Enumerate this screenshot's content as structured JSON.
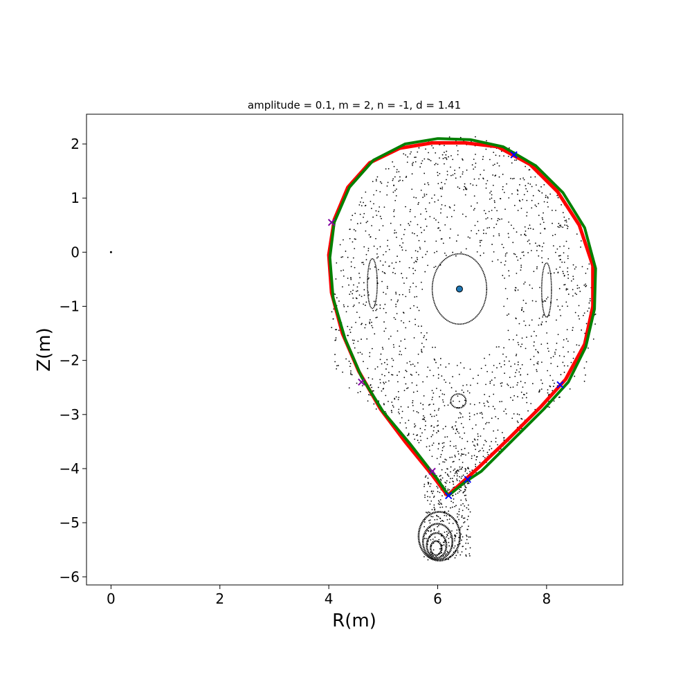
{
  "chart_data": {
    "type": "scatter",
    "title": "amplitude = 0.1, m = 2, n = -1, d = 1.41",
    "xlabel": "R(m)",
    "ylabel": "Z(m)",
    "xlim": [
      -0.45,
      9.4
    ],
    "ylim": [
      -6.15,
      2.55
    ],
    "xticks": [
      0,
      2,
      4,
      6,
      8
    ],
    "yticks": [
      2,
      1,
      0,
      -1,
      -2,
      -3,
      -4,
      -5,
      -6
    ],
    "grid": false,
    "legend": "none",
    "colors": {
      "scatter": "#000000",
      "red_curve": "#ff0000",
      "green_curve": "#008000",
      "x_marker_blue": "#0000ff",
      "x_marker_purple": "#8000a0",
      "axis_marker_fill": "#1f77b4"
    },
    "origin_point": [
      0,
      0
    ],
    "magnetic_axis": [
      6.4,
      -0.68
    ],
    "inner_surface": {
      "cx": 6.4,
      "cy": -0.68,
      "rx": 0.5,
      "ry": 0.65
    },
    "island_left": {
      "cx": 4.8,
      "cy": -0.58,
      "rx": 0.09,
      "ry": 0.46
    },
    "island_right": {
      "cx": 8.0,
      "cy": -0.7,
      "rx": 0.09,
      "ry": 0.5
    },
    "island_bottom": {
      "cx": 6.38,
      "cy": -2.75,
      "rx": 0.14,
      "ry": 0.13
    },
    "lower_surfaces": [
      {
        "cx": 6.03,
        "cy": -5.25,
        "rx": 0.38,
        "ry": 0.45
      },
      {
        "cx": 6.0,
        "cy": -5.35,
        "rx": 0.27,
        "ry": 0.33
      },
      {
        "cx": 5.98,
        "cy": -5.42,
        "rx": 0.18,
        "ry": 0.23
      },
      {
        "cx": 5.97,
        "cy": -5.47,
        "rx": 0.1,
        "ry": 0.13
      }
    ],
    "separatrix_red": [
      [
        6.18,
        -4.5
      ],
      [
        5.9,
        -4.12
      ],
      [
        5.4,
        -3.5
      ],
      [
        4.95,
        -2.9
      ],
      [
        4.55,
        -2.2
      ],
      [
        4.25,
        -1.5
      ],
      [
        4.05,
        -0.75
      ],
      [
        4.0,
        -0.05
      ],
      [
        4.1,
        0.6
      ],
      [
        4.35,
        1.2
      ],
      [
        4.75,
        1.65
      ],
      [
        5.3,
        1.92
      ],
      [
        5.9,
        2.02
      ],
      [
        6.5,
        2.02
      ],
      [
        7.1,
        1.95
      ],
      [
        7.7,
        1.62
      ],
      [
        8.2,
        1.12
      ],
      [
        8.6,
        0.5
      ],
      [
        8.85,
        -0.25
      ],
      [
        8.85,
        -1.0
      ],
      [
        8.7,
        -1.7
      ],
      [
        8.35,
        -2.35
      ],
      [
        7.9,
        -2.85
      ],
      [
        7.3,
        -3.45
      ],
      [
        6.75,
        -3.98
      ],
      [
        6.4,
        -4.3
      ],
      [
        6.18,
        -4.5
      ]
    ],
    "separatrix_green": [
      [
        6.2,
        -4.5
      ],
      [
        6.0,
        -4.2
      ],
      [
        5.5,
        -3.55
      ],
      [
        5.0,
        -2.95
      ],
      [
        4.6,
        -2.3
      ],
      [
        4.3,
        -1.6
      ],
      [
        4.08,
        -0.85
      ],
      [
        4.02,
        -0.1
      ],
      [
        4.1,
        0.55
      ],
      [
        4.38,
        1.2
      ],
      [
        4.82,
        1.7
      ],
      [
        5.4,
        2.0
      ],
      [
        6.0,
        2.1
      ],
      [
        6.6,
        2.08
      ],
      [
        7.2,
        1.95
      ],
      [
        7.8,
        1.6
      ],
      [
        8.3,
        1.1
      ],
      [
        8.7,
        0.45
      ],
      [
        8.9,
        -0.3
      ],
      [
        8.88,
        -1.05
      ],
      [
        8.72,
        -1.75
      ],
      [
        8.4,
        -2.4
      ],
      [
        7.95,
        -2.9
      ],
      [
        7.35,
        -3.5
      ],
      [
        6.8,
        -4.05
      ],
      [
        6.5,
        -4.25
      ],
      [
        6.2,
        -4.5
      ]
    ],
    "markers_x": [
      {
        "x": 6.2,
        "y": -4.5,
        "color": "blue"
      },
      {
        "x": 6.55,
        "y": -4.2,
        "color": "blue"
      },
      {
        "x": 5.9,
        "y": -4.05,
        "color": "purple"
      },
      {
        "x": 7.4,
        "y": 1.8,
        "color": "blue"
      },
      {
        "x": 8.25,
        "y": -2.45,
        "color": "blue"
      },
      {
        "x": 4.05,
        "y": 0.55,
        "color": "purple"
      },
      {
        "x": 4.6,
        "y": -2.4,
        "color": "purple"
      }
    ]
  }
}
